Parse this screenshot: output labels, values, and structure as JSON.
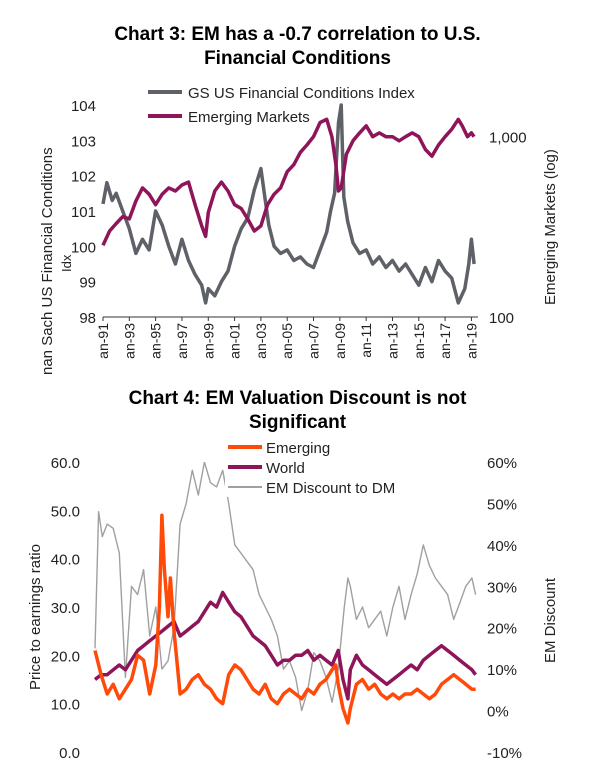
{
  "colors": {
    "title": "#8B1A4A",
    "gs": "#5F6168",
    "em_line": "#8E1559",
    "emerging": "#FF4A0A",
    "world": "#8E1559",
    "discount": "#A0A0A0",
    "axis": "#333333"
  },
  "chart_data": [
    {
      "type": "line",
      "title_lines": [
        "Chart 3: EM has a -0.7 correlation to U.S.",
        "Financial Conditions"
      ],
      "ylabel_left": "nan Sach US Financial Conditions Idx",
      "ylabel_left_main": "nan Sach US Financial Conditions",
      "ylabel_left_tail": "Idx",
      "ylabel_right": "Emerging Markets (log)",
      "yticks_left": [
        "98",
        "99",
        "100",
        "101",
        "102",
        "103",
        "104"
      ],
      "ylim_left": [
        98,
        104
      ],
      "yticks_right": [
        "100",
        "1,000"
      ],
      "ylim_right_log": [
        100,
        1500
      ],
      "y_scale_right": "log",
      "xtick_labels": [
        "an-91",
        "an-93",
        "an-95",
        "an-97",
        "an-99",
        "an-01",
        "an-03",
        "an-05",
        "an-07",
        "an-09",
        "an-11",
        "an-13",
        "an-15",
        "an-17",
        "an-19"
      ],
      "xlim": [
        1991,
        2019.5
      ],
      "legend_position": "top-center",
      "series": [
        {
          "name": "GS US Financial Conditions Index",
          "axis": "left",
          "color": "#5F6168",
          "x": [
            1991.0,
            1991.3,
            1991.7,
            1992.0,
            1992.5,
            1993.0,
            1993.5,
            1994.0,
            1994.5,
            1995.0,
            1995.5,
            1996.0,
            1996.5,
            1997.0,
            1997.5,
            1998.0,
            1998.5,
            1998.8,
            1999.0,
            1999.5,
            2000.0,
            2000.5,
            2001.0,
            2001.5,
            2002.0,
            2002.5,
            2003.0,
            2003.3,
            2003.6,
            2004.0,
            2004.5,
            2005.0,
            2005.5,
            2006.0,
            2006.5,
            2007.0,
            2007.5,
            2008.0,
            2008.3,
            2008.6,
            2008.9,
            2009.1,
            2009.3,
            2009.6,
            2010.0,
            2010.5,
            2011.0,
            2011.5,
            2012.0,
            2012.5,
            2013.0,
            2013.5,
            2014.0,
            2014.5,
            2015.0,
            2015.5,
            2016.0,
            2016.5,
            2017.0,
            2017.5,
            2018.0,
            2018.5,
            2018.8,
            2019.0,
            2019.2
          ],
          "values": [
            101.2,
            101.8,
            101.3,
            101.5,
            101.0,
            100.5,
            99.8,
            100.2,
            99.9,
            101.0,
            100.6,
            100.0,
            99.5,
            100.2,
            99.6,
            99.2,
            98.9,
            98.4,
            98.8,
            98.6,
            99.0,
            99.3,
            100.0,
            100.5,
            100.8,
            101.6,
            102.2,
            101.4,
            100.6,
            100.0,
            99.8,
            99.9,
            99.6,
            99.7,
            99.5,
            99.4,
            99.9,
            100.4,
            101.0,
            101.5,
            103.5,
            104.0,
            101.4,
            100.7,
            100.1,
            99.8,
            99.9,
            99.5,
            99.7,
            99.4,
            99.6,
            99.3,
            99.5,
            99.2,
            98.9,
            99.4,
            99.0,
            99.6,
            99.3,
            99.1,
            98.4,
            98.8,
            99.5,
            100.2,
            99.5
          ]
        },
        {
          "name": "Emerging Markets",
          "axis": "right",
          "color": "#8E1559",
          "x": [
            1991.0,
            1991.5,
            1992.0,
            1992.5,
            1993.0,
            1993.5,
            1994.0,
            1994.5,
            1995.0,
            1995.5,
            1996.0,
            1996.5,
            1997.0,
            1997.5,
            1998.0,
            1998.5,
            1998.8,
            1999.0,
            1999.5,
            2000.0,
            2000.5,
            2001.0,
            2001.5,
            2002.0,
            2002.5,
            2003.0,
            2003.5,
            2004.0,
            2004.5,
            2005.0,
            2005.5,
            2006.0,
            2006.5,
            2007.0,
            2007.5,
            2008.0,
            2008.4,
            2008.7,
            2008.9,
            2009.1,
            2009.5,
            2010.0,
            2010.5,
            2011.0,
            2011.5,
            2012.0,
            2012.5,
            2013.0,
            2013.5,
            2014.0,
            2014.5,
            2015.0,
            2015.5,
            2016.0,
            2016.5,
            2017.0,
            2017.5,
            2018.0,
            2018.3,
            2018.7,
            2019.0,
            2019.2
          ],
          "values": [
            250,
            300,
            330,
            360,
            350,
            440,
            520,
            480,
            420,
            480,
            520,
            500,
            540,
            560,
            420,
            320,
            280,
            380,
            500,
            560,
            500,
            420,
            400,
            350,
            300,
            320,
            420,
            480,
            520,
            640,
            700,
            820,
            900,
            1000,
            1200,
            1250,
            1000,
            700,
            500,
            520,
            800,
            950,
            1050,
            1150,
            1000,
            1050,
            1000,
            1000,
            950,
            1000,
            1050,
            1000,
            850,
            780,
            900,
            1000,
            1100,
            1250,
            1150,
            1000,
            1050,
            1000
          ]
        }
      ]
    },
    {
      "type": "line",
      "title_lines": [
        "Chart 4: EM Valuation Discount is not",
        "Significant"
      ],
      "ylabel_left": "Price to earnings ratio",
      "ylabel_right": "EM Discount",
      "yticks_left": [
        "0.0",
        "10.0",
        "20.0",
        "30.0",
        "40.0",
        "50.0",
        "60.0"
      ],
      "ylim_left": [
        0,
        60
      ],
      "yticks_right": [
        "-10%",
        "0%",
        "10%",
        "20%",
        "30%",
        "40%",
        "50%",
        "60%"
      ],
      "ylim_right": [
        -10,
        60
      ],
      "xlim": [
        1988,
        2019.5
      ],
      "legend_position": "top-center",
      "series": [
        {
          "name": "Emerging",
          "axis": "left",
          "color": "#FF4A0A",
          "x": [
            1988.0,
            1988.5,
            1989.0,
            1989.5,
            1990.0,
            1990.5,
            1991.0,
            1991.5,
            1992.0,
            1992.5,
            1993.0,
            1993.3,
            1993.5,
            1993.7,
            1994.0,
            1994.2,
            1994.5,
            1995.0,
            1995.5,
            1996.0,
            1996.5,
            1997.0,
            1997.5,
            1998.0,
            1998.5,
            1999.0,
            1999.5,
            2000.0,
            2000.5,
            2001.0,
            2001.5,
            2002.0,
            2002.5,
            2003.0,
            2003.5,
            2004.0,
            2004.5,
            2005.0,
            2005.5,
            2006.0,
            2006.5,
            2007.0,
            2007.5,
            2007.8,
            2008.0,
            2008.4,
            2008.8,
            2009.0,
            2009.5,
            2010.0,
            2010.5,
            2011.0,
            2011.5,
            2012.0,
            2012.5,
            2013.0,
            2013.5,
            2014.0,
            2014.5,
            2015.0,
            2015.5,
            2016.0,
            2016.5,
            2017.0,
            2017.5,
            2018.0,
            2018.5,
            2019.0,
            2019.3
          ],
          "values": [
            21,
            16,
            12,
            14,
            11,
            13,
            15,
            20,
            19,
            12,
            18,
            30,
            49,
            38,
            28,
            36,
            25,
            12,
            13,
            15,
            16,
            14,
            13,
            11,
            10,
            16,
            18,
            17,
            15,
            13,
            12,
            14,
            11,
            10,
            12,
            13,
            12,
            11,
            13,
            12,
            14,
            15,
            17,
            18,
            14,
            9,
            6,
            9,
            14,
            15,
            13,
            14,
            12,
            11,
            12,
            11,
            12,
            12,
            13,
            12,
            11,
            12,
            14,
            15,
            16,
            15,
            14,
            13,
            13
          ]
        },
        {
          "name": "World",
          "axis": "left",
          "color": "#8E1559",
          "x": [
            1988.0,
            1988.5,
            1989.0,
            1989.5,
            1990.0,
            1990.5,
            1991.0,
            1991.5,
            1992.0,
            1992.5,
            1993.0,
            1993.5,
            1994.0,
            1994.5,
            1995.0,
            1995.5,
            1996.0,
            1996.5,
            1997.0,
            1997.5,
            1998.0,
            1998.5,
            1999.0,
            1999.5,
            2000.0,
            2000.5,
            2001.0,
            2001.5,
            2002.0,
            2002.5,
            2003.0,
            2003.5,
            2004.0,
            2004.5,
            2005.0,
            2005.5,
            2006.0,
            2006.5,
            2007.0,
            2007.5,
            2008.0,
            2008.4,
            2008.8,
            2009.0,
            2009.5,
            2010.0,
            2010.5,
            2011.0,
            2011.5,
            2012.0,
            2012.5,
            2013.0,
            2013.5,
            2014.0,
            2014.5,
            2015.0,
            2015.5,
            2016.0,
            2016.5,
            2017.0,
            2017.5,
            2018.0,
            2018.5,
            2019.0,
            2019.3
          ],
          "values": [
            15,
            16,
            16,
            17,
            18,
            17,
            19,
            21,
            22,
            23,
            24,
            25,
            26,
            27,
            24,
            25,
            26,
            27,
            29,
            31,
            30,
            33,
            31,
            29,
            28,
            26,
            24,
            23,
            22,
            20,
            18,
            19,
            19,
            20,
            20,
            21,
            19,
            20,
            19,
            18,
            21,
            15,
            11,
            17,
            20,
            18,
            17,
            16,
            15,
            14,
            15,
            16,
            17,
            18,
            17,
            19,
            20,
            21,
            22,
            21,
            20,
            19,
            18,
            17,
            16
          ]
        },
        {
          "name": "EM Discount to DM",
          "axis": "right",
          "color": "#A0A0A0",
          "x": [
            1988.0,
            1988.3,
            1988.6,
            1989.0,
            1989.5,
            1990.0,
            1990.5,
            1991.0,
            1991.5,
            1992.0,
            1992.5,
            1993.0,
            1993.5,
            1994.0,
            1994.5,
            1995.0,
            1995.5,
            1996.0,
            1996.5,
            1997.0,
            1997.5,
            1998.0,
            1998.5,
            1999.0,
            1999.5,
            2000.0,
            2000.5,
            2001.0,
            2001.5,
            2002.0,
            2002.5,
            2003.0,
            2003.5,
            2004.0,
            2004.5,
            2005.0,
            2005.5,
            2006.0,
            2006.5,
            2007.0,
            2007.5,
            2008.0,
            2008.5,
            2008.8,
            2009.0,
            2009.5,
            2010.0,
            2010.5,
            2011.0,
            2011.5,
            2012.0,
            2012.5,
            2013.0,
            2013.5,
            2014.0,
            2014.5,
            2015.0,
            2015.5,
            2016.0,
            2016.5,
            2017.0,
            2017.5,
            2018.0,
            2018.5,
            2019.0,
            2019.3
          ],
          "values": [
            15,
            48,
            42,
            45,
            44,
            38,
            8,
            30,
            28,
            34,
            18,
            25,
            10,
            12,
            20,
            45,
            50,
            58,
            52,
            60,
            55,
            54,
            58,
            50,
            40,
            38,
            36,
            34,
            28,
            25,
            22,
            18,
            10,
            12,
            8,
            0,
            5,
            14,
            12,
            8,
            2,
            10,
            25,
            32,
            30,
            22,
            25,
            20,
            22,
            24,
            18,
            25,
            30,
            22,
            28,
            33,
            40,
            35,
            32,
            30,
            28,
            22,
            26,
            30,
            32,
            28
          ]
        }
      ]
    }
  ]
}
